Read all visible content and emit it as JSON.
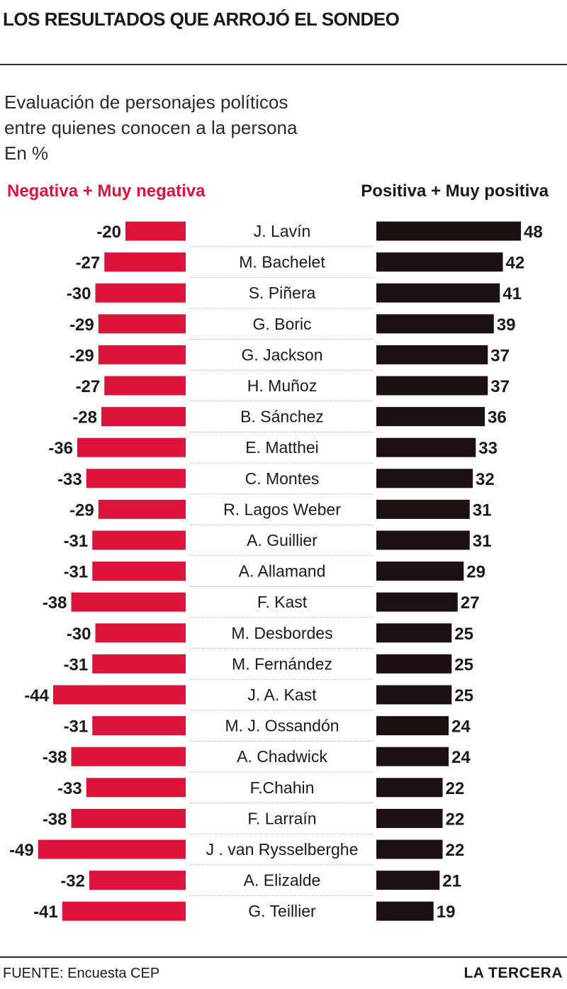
{
  "header": {
    "title": "LOS RESULTADOS QUE ARROJÓ EL SONDEO",
    "subtitle_lines": [
      "Evaluación de personajes políticos",
      "entre quienes conocen a la persona",
      "En %"
    ]
  },
  "colors": {
    "negative": "#dc143c",
    "positive": "#1c1010",
    "text": "#1a1a1a",
    "separator": "#b5b5b5"
  },
  "chart_data": {
    "type": "bar",
    "title": "Evaluación de personajes políticos entre quienes conocen a la persona",
    "ylabel": "En %",
    "categories": [
      "J. Lavín",
      "M. Bachelet",
      "S. Piñera",
      "G. Boric",
      "G. Jackson",
      "H. Muñoz",
      "B. Sánchez",
      "E. Matthei",
      "C. Montes",
      "R. Lagos Weber",
      "A. Guillier",
      "A. Allamand",
      "F. Kast",
      "M. Desbordes",
      "M. Fernández",
      "J. A. Kast",
      "M. J. Ossandón",
      "A. Chadwick",
      "F.Chahin",
      "F. Larraín",
      "J . van Rysselberghe",
      "A. Elizalde",
      "G. Teillier"
    ],
    "series": [
      {
        "name": "Negativa + Muy negativa",
        "values": [
          -20,
          -27,
          -30,
          -29,
          -29,
          -27,
          -28,
          -36,
          -33,
          -29,
          -31,
          -31,
          -38,
          -30,
          -31,
          -44,
          -31,
          -38,
          -33,
          -38,
          -49,
          -32,
          -41
        ]
      },
      {
        "name": "Positiva + Muy positiva",
        "values": [
          48,
          42,
          41,
          39,
          37,
          37,
          36,
          33,
          32,
          31,
          31,
          29,
          27,
          25,
          25,
          25,
          24,
          24,
          22,
          22,
          22,
          21,
          19
        ]
      }
    ]
  },
  "footer": {
    "source": "FUENTE: Encuesta CEP",
    "brand": "LA TERCERA"
  }
}
